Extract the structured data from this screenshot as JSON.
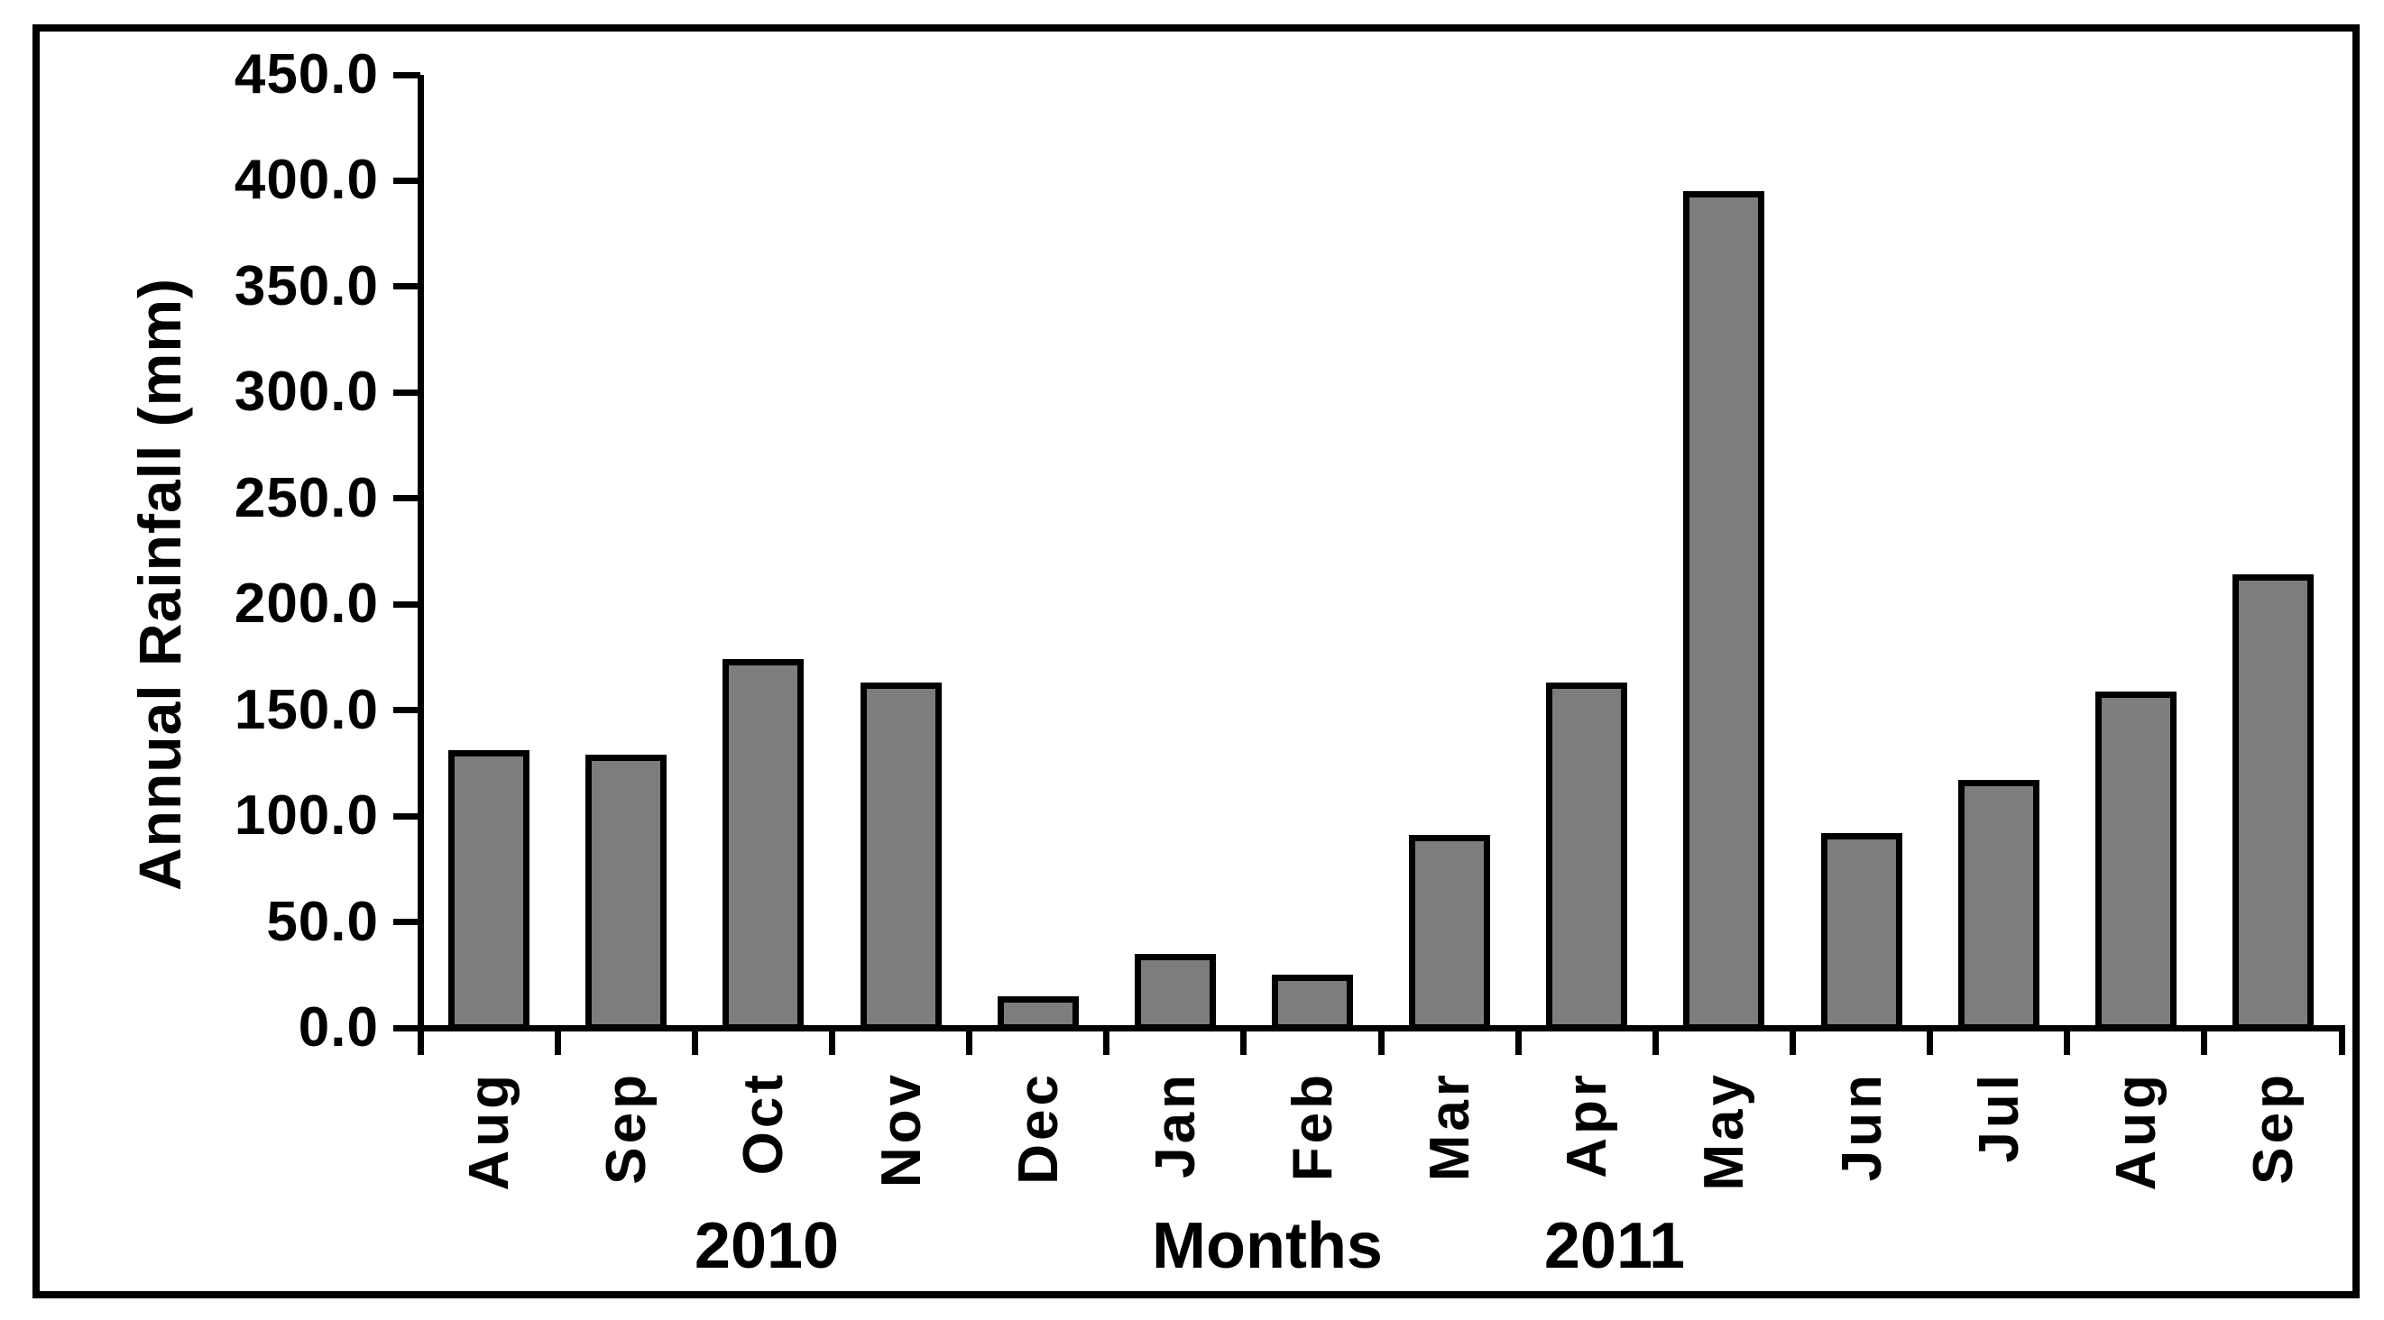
{
  "chart_data": {
    "type": "bar",
    "title": "",
    "ylabel": "Annual Rainfall (mm)",
    "xlabel": "Months",
    "categories": [
      "Aug",
      "Sep",
      "Oct",
      "Nov",
      "Dec",
      "Jan",
      "Feb",
      "Mar",
      "Apr",
      "May",
      "Jun",
      "Jul",
      "Aug",
      "Sep"
    ],
    "values": [
      131,
      129,
      174,
      163,
      15,
      35,
      25,
      91,
      163,
      395,
      92,
      117,
      159,
      214
    ],
    "category_years": [
      "2010",
      "2010",
      "2010",
      "2010",
      "2010",
      "2011",
      "2011",
      "2011",
      "2011",
      "2011",
      "2011",
      "2011",
      "2011",
      "2011"
    ],
    "group_labels": {
      "year_2010": "2010",
      "year_2011": "2011"
    },
    "y_ticks": [
      0,
      50,
      100,
      150,
      200,
      250,
      300,
      350,
      400,
      450
    ],
    "y_tick_decimals": 1,
    "ylim": [
      0,
      450
    ],
    "grid": "off",
    "legend": "none",
    "bar_fill": "#7d7d7d",
    "bar_border": "#000000",
    "frame_color": "#000000",
    "background": "#ffffff"
  }
}
